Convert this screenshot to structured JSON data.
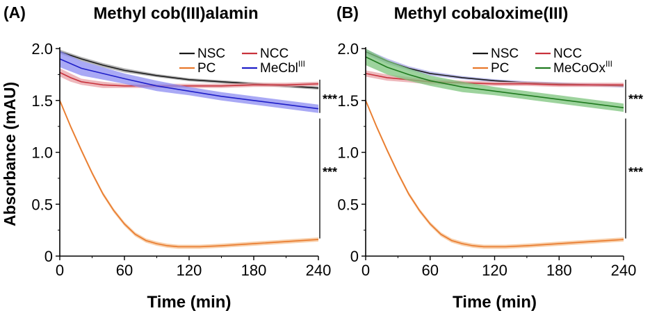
{
  "y_axis_label": "Absorbance (mAU)",
  "chart_data": [
    {
      "type": "line",
      "panel": "(A)",
      "title": "Methyl cob(III)alamin",
      "xlabel": "Time (min)",
      "ylabel": "Absorbance (mAU)",
      "xlim": [
        0,
        240
      ],
      "ylim": [
        0,
        2.0
      ],
      "xticks": [
        0,
        60,
        120,
        180,
        240
      ],
      "yticks": [
        0,
        0.5,
        1.0,
        1.5,
        2.0
      ],
      "ytick_labels": [
        "0",
        "0.5",
        "1.0",
        "1.5",
        "2.0"
      ],
      "grid": false,
      "legend_position": "top-right",
      "series": [
        {
          "name": "NSC",
          "color": "#1a1a1a",
          "band": "#9a9a9a",
          "x": [
            0,
            20,
            40,
            60,
            90,
            120,
            150,
            180,
            210,
            240
          ],
          "values": [
            1.97,
            1.9,
            1.84,
            1.79,
            1.74,
            1.7,
            1.68,
            1.66,
            1.64,
            1.62
          ],
          "band_width": [
            0.02,
            0.02,
            0.02,
            0.02,
            0.015,
            0.015,
            0.015,
            0.015,
            0.015,
            0.015
          ]
        },
        {
          "name": "NCC",
          "color": "#c8323c",
          "band": "#e8a0a6",
          "x": [
            0,
            10,
            20,
            40,
            60,
            90,
            120,
            150,
            180,
            210,
            240
          ],
          "values": [
            1.77,
            1.72,
            1.68,
            1.65,
            1.64,
            1.64,
            1.64,
            1.64,
            1.65,
            1.65,
            1.66
          ],
          "band_width": [
            0.04,
            0.04,
            0.03,
            0.03,
            0.02,
            0.02,
            0.02,
            0.02,
            0.02,
            0.02,
            0.02
          ]
        },
        {
          "name": "PC",
          "color": "#e8782a",
          "band": "#f6bf8e",
          "x": [
            0,
            10,
            20,
            30,
            40,
            50,
            60,
            70,
            80,
            90,
            100,
            110,
            120,
            130,
            150,
            180,
            210,
            240
          ],
          "values": [
            1.5,
            1.25,
            1.02,
            0.8,
            0.6,
            0.44,
            0.31,
            0.21,
            0.15,
            0.12,
            0.1,
            0.09,
            0.09,
            0.09,
            0.1,
            0.12,
            0.14,
            0.16
          ],
          "band_width": [
            0.02,
            0.02,
            0.02,
            0.02,
            0.02,
            0.02,
            0.02,
            0.02,
            0.02,
            0.02,
            0.02,
            0.02,
            0.02,
            0.02,
            0.02,
            0.02,
            0.02,
            0.02
          ]
        },
        {
          "name": "MeCbl",
          "name_sup": "III",
          "color": "#1e1ec8",
          "band": "#8c8cf2",
          "x": [
            0,
            20,
            40,
            60,
            90,
            120,
            150,
            180,
            210,
            240
          ],
          "values": [
            1.9,
            1.81,
            1.76,
            1.71,
            1.64,
            1.59,
            1.54,
            1.5,
            1.46,
            1.42
          ],
          "band_width": [
            0.08,
            0.07,
            0.06,
            0.05,
            0.05,
            0.04,
            0.04,
            0.04,
            0.04,
            0.04
          ]
        }
      ],
      "annotations": [
        {
          "text": "***",
          "between": [
            "NSC",
            "MeCbl"
          ]
        },
        {
          "text": "***",
          "between": [
            "NSC",
            "PC"
          ]
        }
      ]
    },
    {
      "type": "line",
      "panel": "(B)",
      "title": "Methyl cobaloxime(III)",
      "xlabel": "Time (min)",
      "ylabel": "Absorbance (mAU)",
      "xlim": [
        0,
        240
      ],
      "ylim": [
        0,
        2.0
      ],
      "xticks": [
        0,
        60,
        120,
        180,
        240
      ],
      "yticks": [
        0,
        0.5,
        1.0,
        1.5,
        2.0
      ],
      "ytick_labels": [
        "0",
        "0.5",
        "1.0",
        "1.5",
        "2.0"
      ],
      "grid": false,
      "legend_position": "top-right",
      "series": [
        {
          "name": "NSC",
          "color": "#1a1a1a",
          "band": "#a8a8e6",
          "x": [
            0,
            20,
            40,
            60,
            90,
            120,
            150,
            180,
            210,
            240
          ],
          "values": [
            1.97,
            1.88,
            1.81,
            1.76,
            1.72,
            1.69,
            1.67,
            1.66,
            1.65,
            1.64
          ],
          "band_width": [
            0.025,
            0.025,
            0.02,
            0.02,
            0.015,
            0.015,
            0.015,
            0.015,
            0.015,
            0.015
          ]
        },
        {
          "name": "NCC",
          "color": "#c8323c",
          "band": "#e8a0a6",
          "x": [
            0,
            20,
            40,
            60,
            90,
            120,
            150,
            180,
            210,
            240
          ],
          "values": [
            1.76,
            1.72,
            1.7,
            1.68,
            1.67,
            1.66,
            1.66,
            1.65,
            1.65,
            1.65
          ],
          "band_width": [
            0.03,
            0.03,
            0.025,
            0.025,
            0.02,
            0.02,
            0.02,
            0.02,
            0.02,
            0.02
          ]
        },
        {
          "name": "PC",
          "color": "#e8782a",
          "band": "#f6bf8e",
          "x": [
            0,
            10,
            20,
            30,
            40,
            50,
            60,
            70,
            80,
            90,
            100,
            110,
            120,
            130,
            150,
            180,
            210,
            240
          ],
          "values": [
            1.5,
            1.25,
            1.02,
            0.8,
            0.6,
            0.44,
            0.31,
            0.21,
            0.15,
            0.12,
            0.1,
            0.09,
            0.09,
            0.09,
            0.1,
            0.12,
            0.14,
            0.16
          ],
          "band_width": [
            0.02,
            0.02,
            0.02,
            0.02,
            0.02,
            0.02,
            0.02,
            0.02,
            0.02,
            0.02,
            0.02,
            0.02,
            0.02,
            0.02,
            0.02,
            0.02,
            0.02,
            0.02
          ]
        },
        {
          "name": "MeCoOx",
          "name_sup": "III",
          "color": "#1f7a1f",
          "band": "#7cc47c",
          "x": [
            0,
            20,
            40,
            60,
            90,
            120,
            150,
            180,
            210,
            240
          ],
          "values": [
            1.92,
            1.82,
            1.75,
            1.69,
            1.63,
            1.59,
            1.55,
            1.51,
            1.47,
            1.43
          ],
          "band_width": [
            0.08,
            0.07,
            0.06,
            0.05,
            0.05,
            0.04,
            0.04,
            0.04,
            0.04,
            0.04
          ]
        }
      ],
      "annotations": [
        {
          "text": "***",
          "between": [
            "NSC",
            "MeCoOx"
          ]
        },
        {
          "text": "***",
          "between": [
            "NSC",
            "PC"
          ]
        }
      ]
    }
  ]
}
